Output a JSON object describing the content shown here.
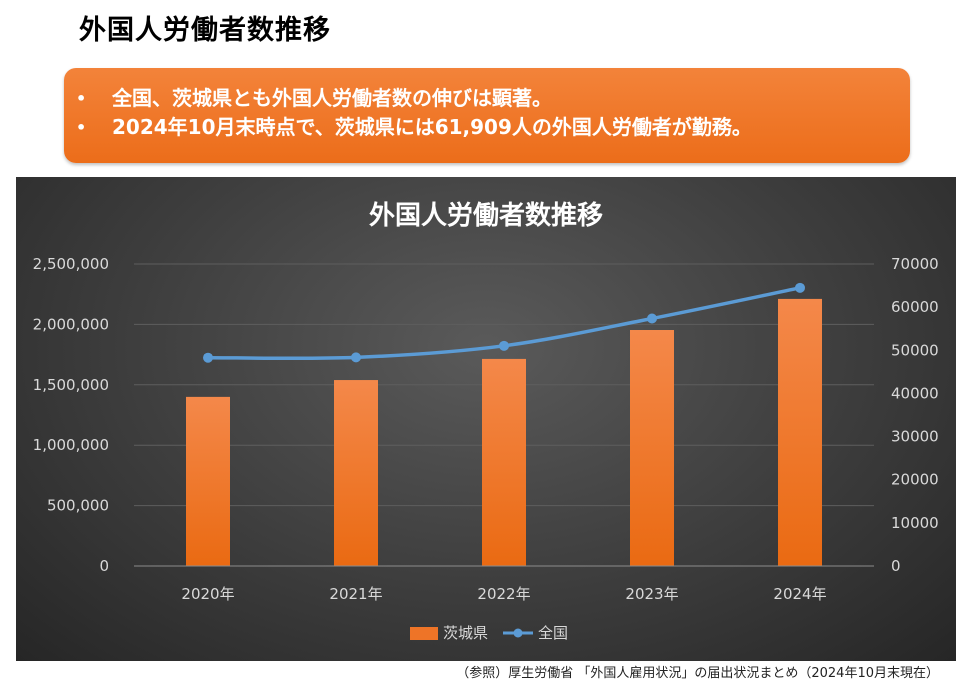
{
  "page_title": "外国人労働者数推移",
  "summary": {
    "bullet_symbol": "•",
    "bullets": [
      "全国、茨城県とも外国人労働者数の伸びは顕著。",
      "2024年10月末時点で、茨城県には61,909人の外国人労働者が勤務。"
    ],
    "background_color": "#ee7427"
  },
  "footnote": "（参照）厚生労働省 「外国人雇用状況」の届出状況まとめ（2024年10月末現在）",
  "chart_data": {
    "type": "bar",
    "title": "外国人労働者数推移",
    "categories": [
      "2020年",
      "2021年",
      "2022年",
      "2023年",
      "2024年"
    ],
    "series": [
      {
        "name": "茨城県",
        "type": "bar",
        "axis": "right",
        "color": "#ee7427",
        "values": [
          39200,
          43100,
          48000,
          54700,
          61909
        ]
      },
      {
        "name": "全国",
        "type": "line",
        "axis": "left",
        "color": "#5b9bd5",
        "values": [
          1724328,
          1727221,
          1822725,
          2048675,
          2302587
        ]
      }
    ],
    "left_axis": {
      "ylim": [
        0,
        2500000
      ],
      "ticks": [
        "0",
        "500,000",
        "1,000,000",
        "1,500,000",
        "2,000,000",
        "2,500,000"
      ]
    },
    "right_axis": {
      "ylim": [
        0,
        70000
      ],
      "ticks": [
        "0",
        "10000",
        "20000",
        "30000",
        "40000",
        "50000",
        "60000",
        "70000"
      ]
    },
    "grid": true,
    "legend_position": "bottom"
  }
}
